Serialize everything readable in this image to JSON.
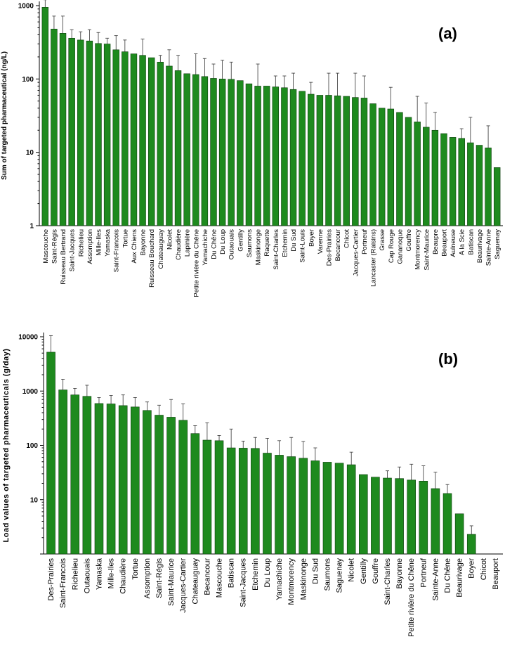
{
  "chart_data": [
    {
      "type": "bar",
      "panel_label": "(a)",
      "ylabel": "Sum of targeted pharmaceutical (ng/L)",
      "xlabel": "",
      "yscale": "log",
      "ylim": [
        1,
        1000
      ],
      "yticks": [
        "1",
        "10",
        "100",
        "1000"
      ],
      "categories": [
        "Mascouche",
        "Saint-Régis",
        "Ruisseau Bertrand",
        "Saint-Jacques",
        "Richelieu",
        "Assomption",
        "Mille-Iles",
        "Yamaska",
        "Saint-Francois",
        "Tortue",
        "Aux Chiens",
        "Bayonne",
        "Ruisseau Bouchard",
        "Chateauguay",
        "Nicolet",
        "Chaudière",
        "Lapinière",
        "Petite rivière du Chêne",
        "Yamachiche",
        "Du Chêne",
        "Du Loup",
        "Outaouais",
        "Gentilly",
        "Saumons",
        "Maskinonge",
        "Raquette",
        "Saint-Charles",
        "Etchemin",
        "Du Sud",
        "Saint-Louis",
        "Boyer",
        "Varenne",
        "Des-Prairies",
        "Becancour",
        "Chicot",
        "Jacques-Cartier",
        "Portneuf",
        "Lancaster (Raisins)",
        "Grasse",
        "Cap Rouge",
        "Gananoque",
        "Gouffre",
        "Montmorency",
        "Saint-Maurice",
        "Beaupre",
        "Beauport",
        "Aulneuse",
        "A la Scie",
        "Batiscan",
        "Beaurivage",
        "Sainte-Anne",
        "Saguenay"
      ],
      "values": [
        950,
        480,
        420,
        360,
        340,
        330,
        305,
        300,
        250,
        235,
        220,
        210,
        195,
        170,
        150,
        130,
        118,
        115,
        108,
        102,
        100,
        99,
        95,
        86,
        80,
        80,
        78,
        76,
        72,
        68,
        62,
        60,
        60,
        59,
        58,
        56,
        55,
        46,
        40,
        39,
        35,
        30,
        26,
        22,
        20,
        18,
        16,
        15.5,
        13.5,
        12.5,
        11.5,
        6.2
      ],
      "errors_upper": [
        1200,
        720,
        720,
        470,
        440,
        470,
        430,
        360,
        390,
        340,
        0,
        350,
        0,
        210,
        250,
        210,
        0,
        220,
        190,
        160,
        180,
        170,
        0,
        0,
        160,
        0,
        110,
        110,
        120,
        0,
        90,
        0,
        120,
        120,
        0,
        120,
        110,
        0,
        0,
        77,
        0,
        0,
        58,
        47,
        35,
        0,
        0,
        21,
        30,
        0,
        23,
        0
      ]
    },
    {
      "type": "bar",
      "panel_label": "(b)",
      "ylabel": "Load values of targeted pharmaceuticals (g/day)",
      "xlabel": "",
      "yscale": "log",
      "ylim": [
        1,
        10000
      ],
      "yticks": [
        "10",
        "100",
        "1000",
        "10000"
      ],
      "categories": [
        "Des-Prairies",
        "Saint-Francois",
        "Richelieu",
        "Outaouais",
        "Yamaska",
        "Mille-Iles",
        "Chaudière",
        "Tortue",
        "Assomption",
        "Saint-Régis",
        "Saint-Maurice",
        "Jacques-Cartier",
        "Chateauguay",
        "Becancour",
        "Mascouche",
        "Batiscan",
        "Saint-Jacques",
        "Etchemin",
        "Du Loup",
        "Yamachiche",
        "Montmorency",
        "Maskinonge",
        "Du Sud",
        "Saumons",
        "Saguenay",
        "Nicolet",
        "Gentilly",
        "Gouffre",
        "Saint-Charles",
        "Bayonne",
        "Petite rivière du Chêne",
        "Portneuf",
        "Sainte-Anne",
        "Du Chêne",
        "Beaurivage",
        "Boyer",
        "Chicot",
        "Beauport"
      ],
      "values": [
        5200,
        1050,
        850,
        800,
        590,
        580,
        540,
        510,
        440,
        360,
        330,
        290,
        165,
        125,
        122,
        90,
        89,
        88,
        72,
        66,
        62,
        58,
        52,
        49,
        47,
        44,
        29,
        26,
        25,
        24.5,
        23,
        22,
        16,
        13,
        5.5,
        2.3,
        0,
        0
      ],
      "errors_upper": [
        10500,
        1650,
        1120,
        1280,
        760,
        830,
        850,
        760,
        630,
        550,
        700,
        580,
        230,
        260,
        152,
        200,
        120,
        140,
        135,
        122,
        140,
        118,
        90,
        0,
        0,
        75,
        0,
        0,
        34,
        40,
        45,
        42,
        32,
        19,
        0,
        3.3,
        0,
        0
      ]
    }
  ]
}
